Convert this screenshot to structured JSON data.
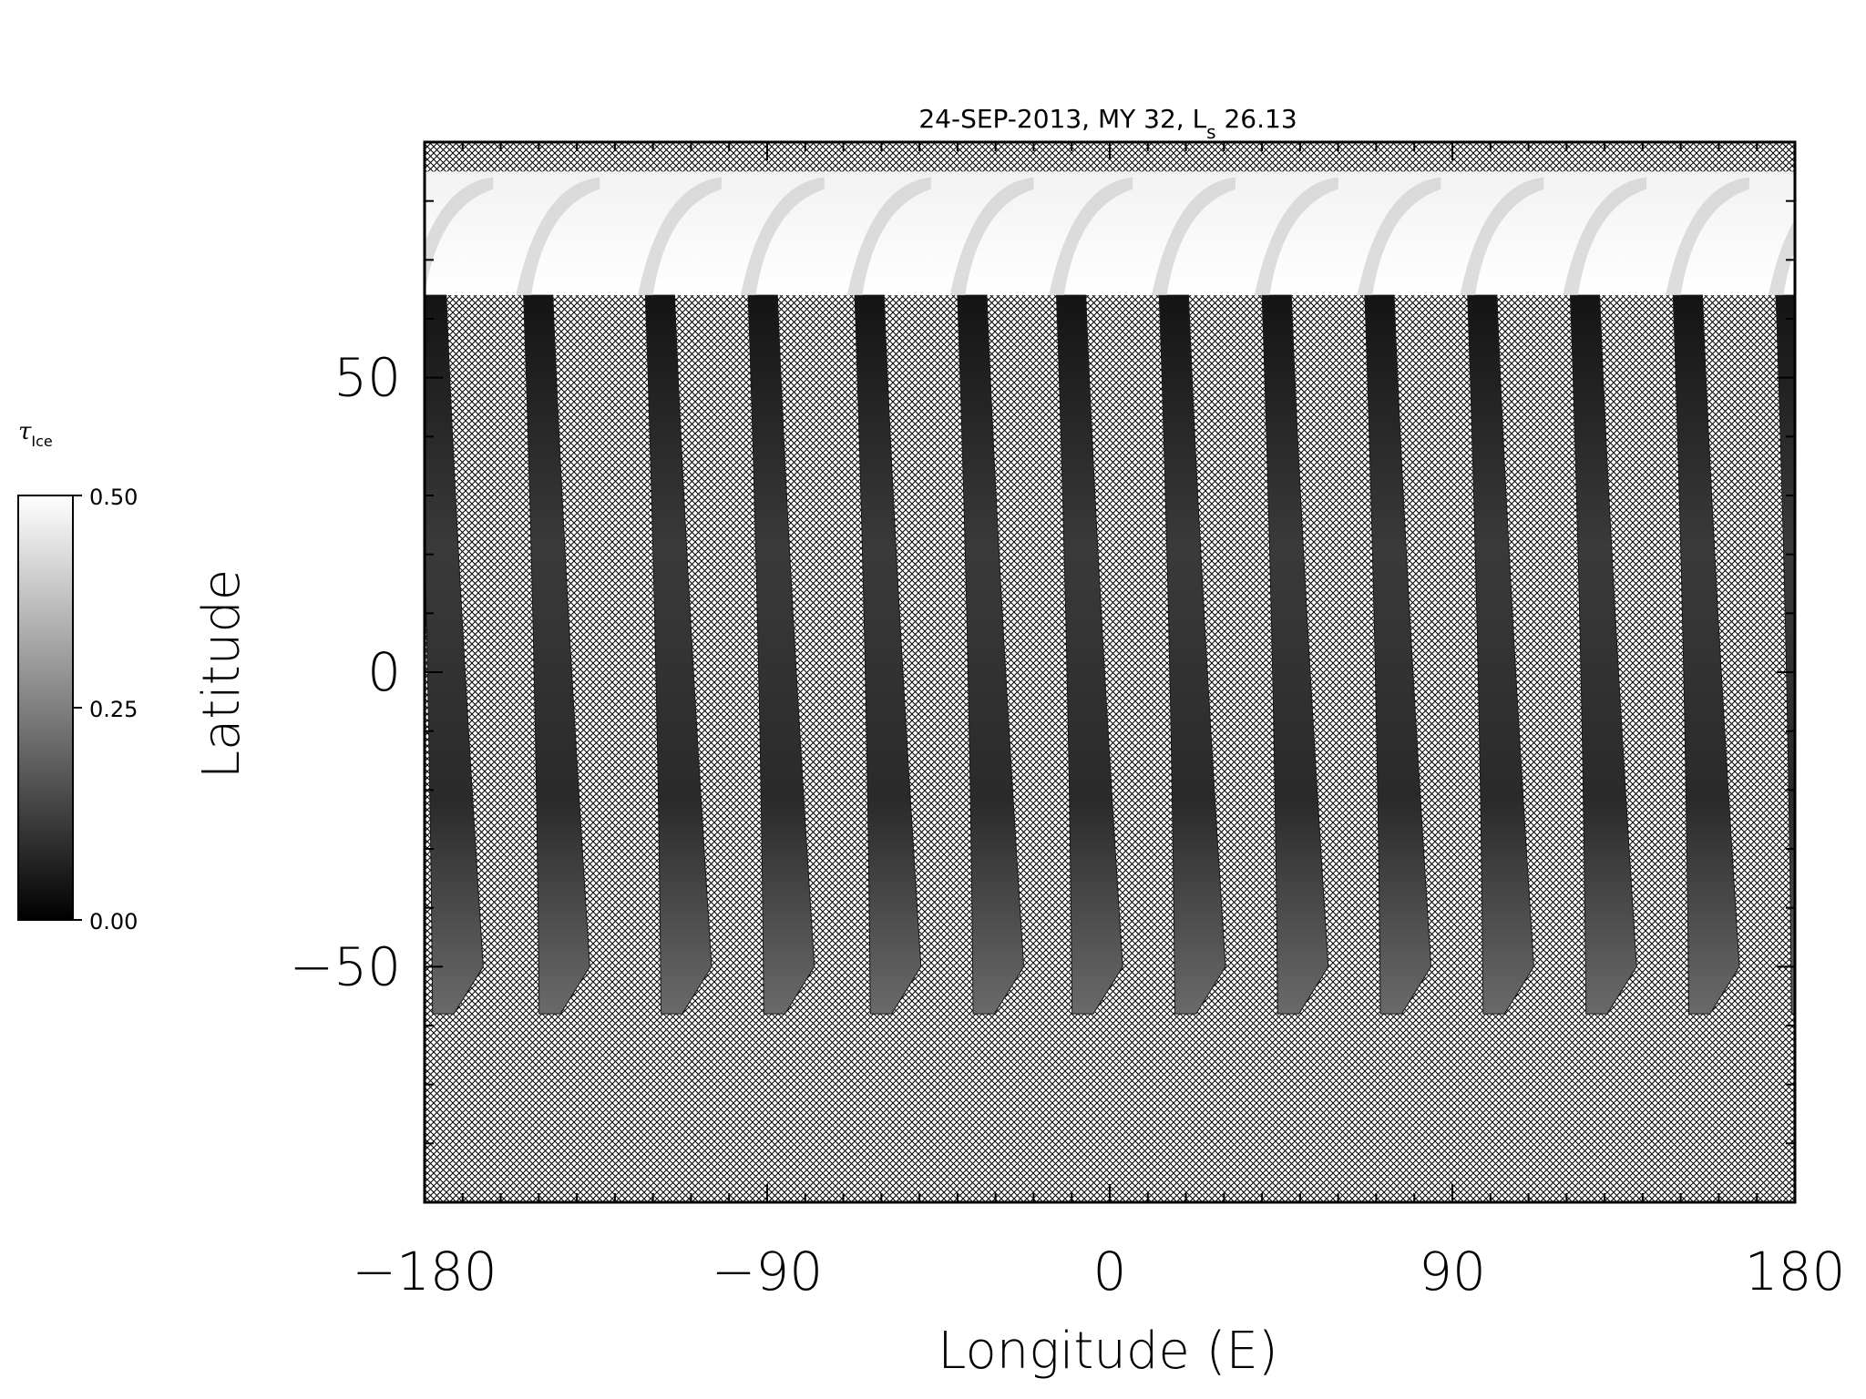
{
  "chart_data": {
    "type": "heatmap",
    "title": "24-SEP-2013, MY 32,  L",
    "title_sub": "s",
    "title_suffix": " 26.13",
    "xlabel": "Longitude (E)",
    "ylabel": "Latitude",
    "xlim": [
      -180,
      180
    ],
    "ylim": [
      -90,
      90
    ],
    "x_ticks": [
      -180,
      -90,
      0,
      90,
      180
    ],
    "x_tick_labels": [
      "−180",
      "−90",
      "0",
      "90",
      "180"
    ],
    "y_ticks": [
      50,
      0,
      -50
    ],
    "y_tick_labels": [
      "50",
      "0",
      "−50"
    ],
    "x_minor_step": 10,
    "y_minor_step": 10,
    "north_valid_lat": 85,
    "cap_lower_lat": 64,
    "south_edge_lat": -58,
    "swath_south_lon": [
      -173,
      -145,
      -113,
      -86,
      -58,
      -31,
      -5,
      22,
      49,
      76,
      103,
      130,
      157,
      184
    ],
    "swath_width_deg": 14,
    "swath_drift_deg": 9,
    "colorbar": {
      "title": "τ",
      "title_sub": "Ice",
      "min": 0.0,
      "max": 0.5,
      "ticks": [
        0.5,
        0.25,
        0.0
      ],
      "tick_labels": [
        "0.50",
        "0.25",
        "0.00"
      ]
    },
    "colors": {
      "background": "#ffffff",
      "hatch": "#000000",
      "cap": "#f4f4f4",
      "low": "#0a0a0a",
      "high": "#ffffff"
    }
  }
}
